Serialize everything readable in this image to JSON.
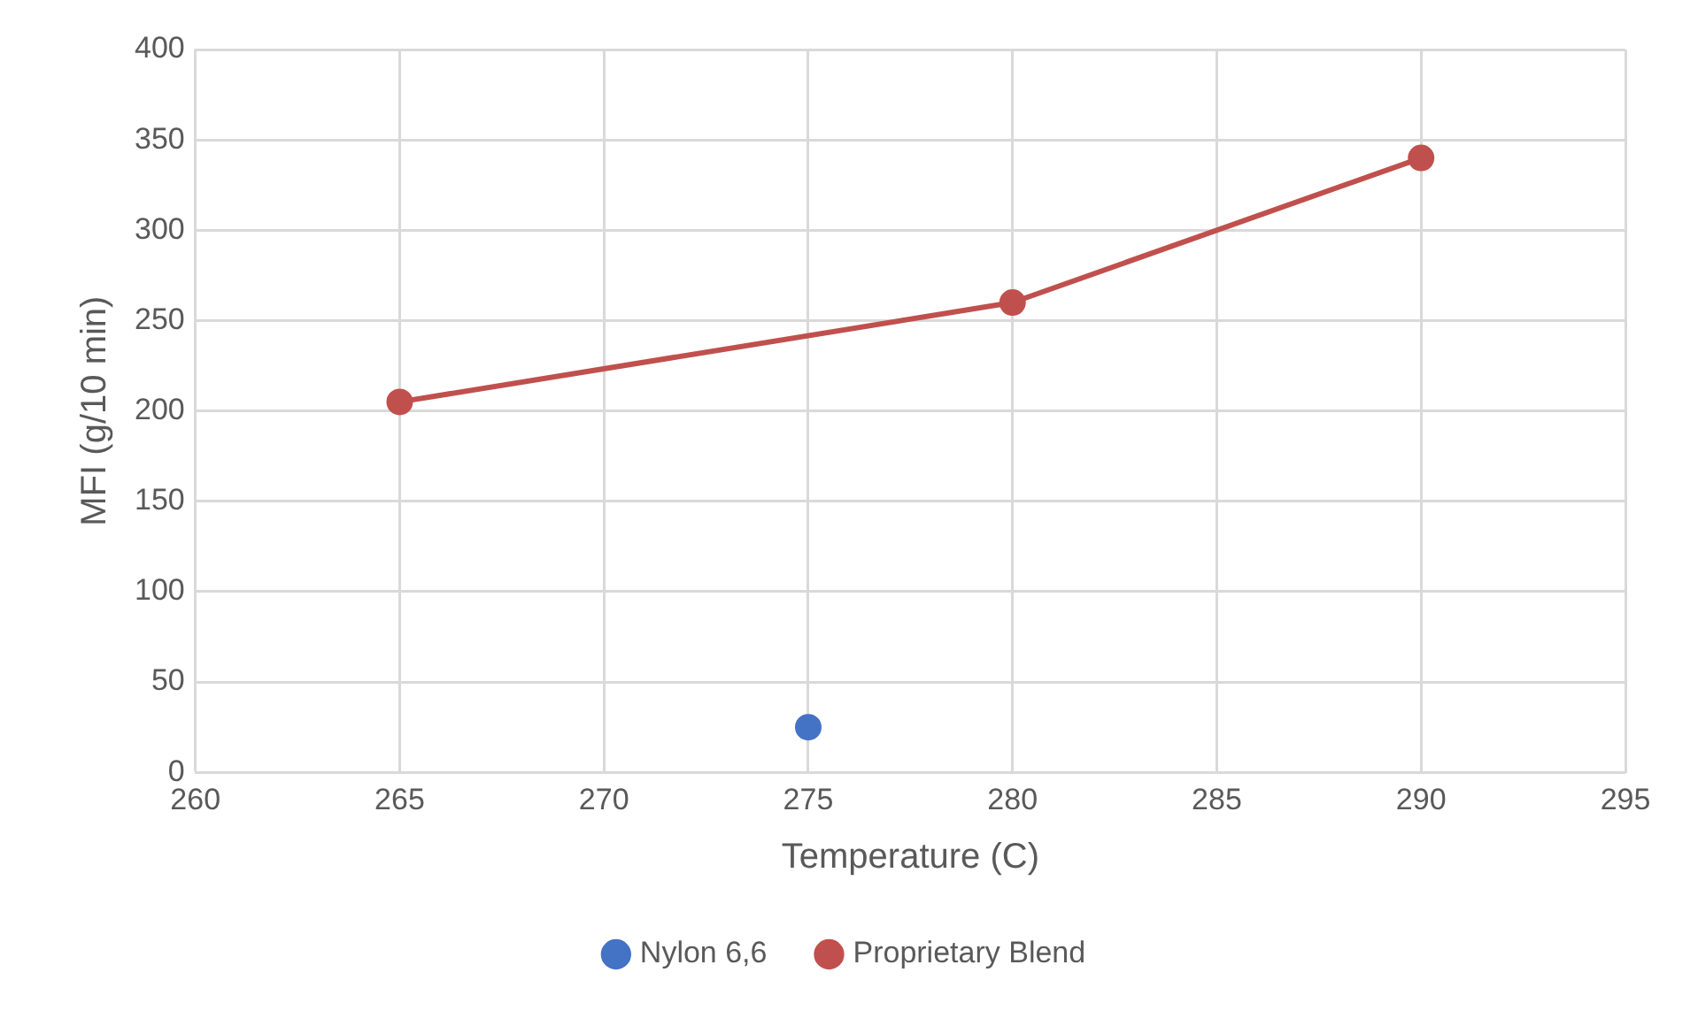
{
  "chart_data": {
    "type": "line",
    "xlabel": "Temperature (C)",
    "ylabel": "MFI (g/10 min)",
    "xlim": [
      260,
      295
    ],
    "xticks": [
      260,
      265,
      270,
      275,
      280,
      285,
      290,
      295
    ],
    "ylim": [
      0,
      400
    ],
    "yticks": [
      0,
      50,
      100,
      150,
      200,
      250,
      300,
      350,
      400
    ],
    "grid": true,
    "legend": "bottom",
    "marker": "circle",
    "line_style": "solid",
    "series": [
      {
        "name": "Nylon 6,6",
        "color": "#4472c4",
        "x": [
          275
        ],
        "values": [
          25
        ]
      },
      {
        "name": "Proprietary Blend",
        "color": "#c0504d",
        "x": [
          265,
          280,
          290
        ],
        "values": [
          205,
          260,
          340
        ]
      }
    ]
  }
}
